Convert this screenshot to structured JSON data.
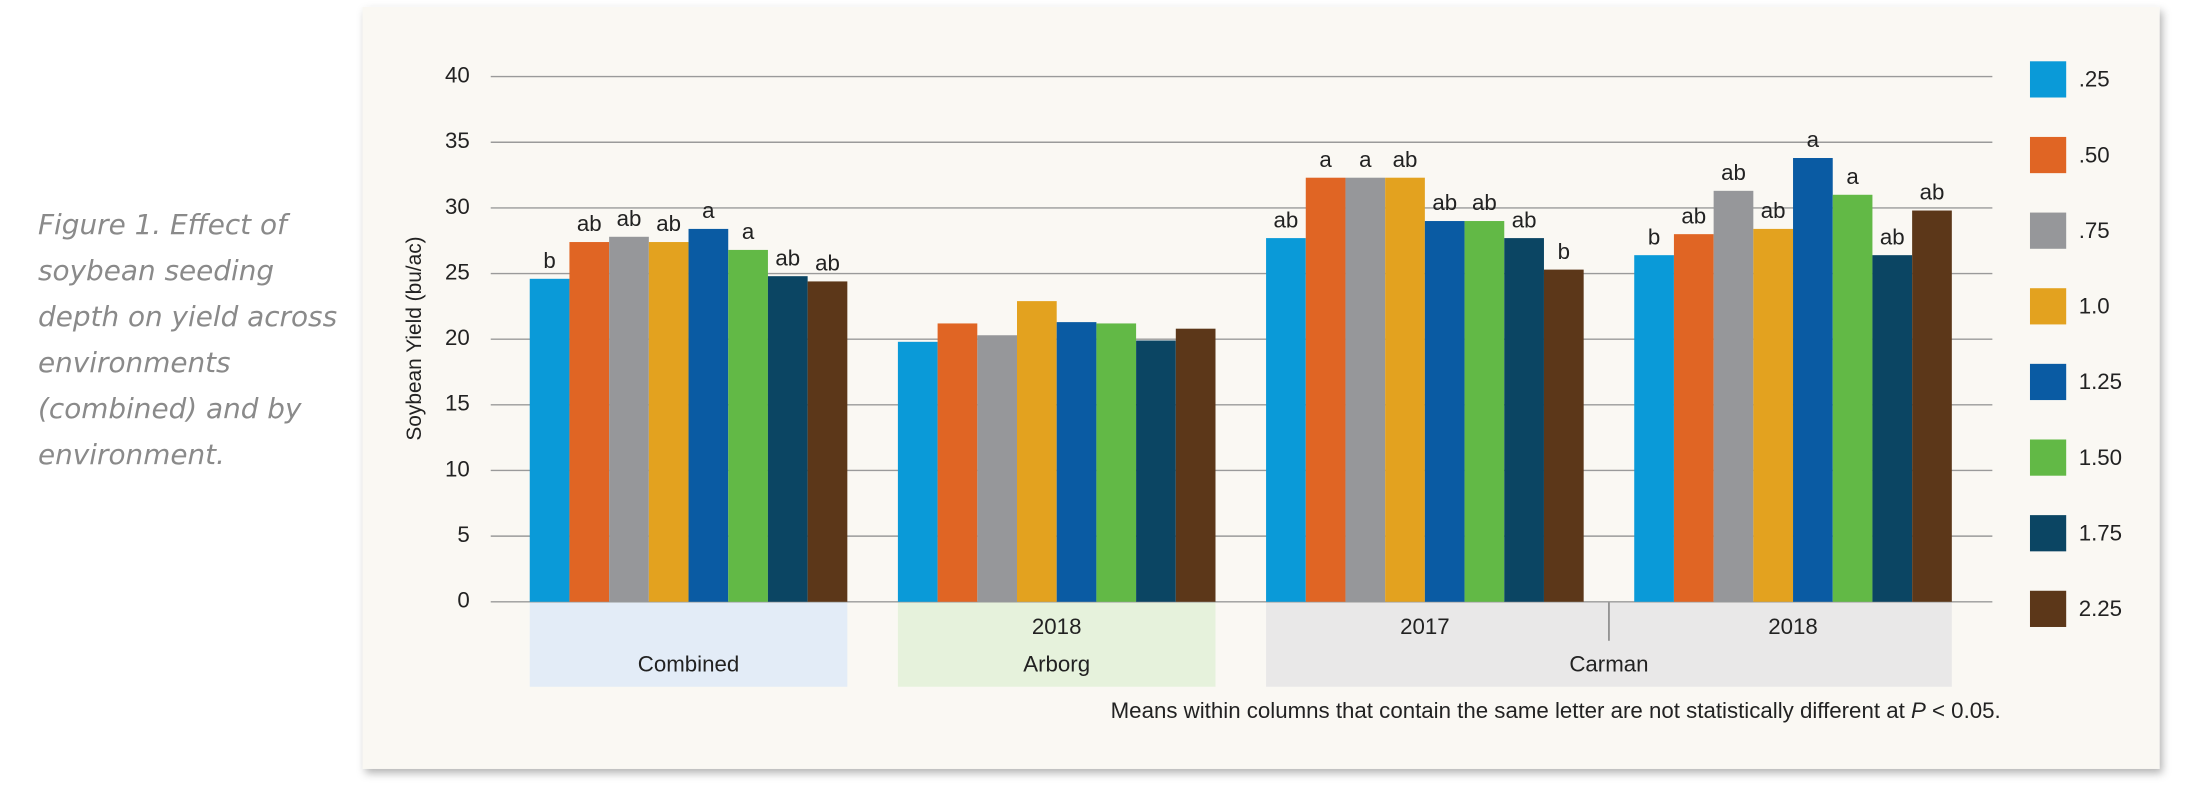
{
  "chart_data": {
    "type": "bar",
    "caption": "Figure 1. Effect of soybean seeding depth on yield across environments (combined) and by environment.",
    "y_label": "Soybean Yield (bu/ac)",
    "categories": [
      null,
      "2018",
      "2017",
      "2018"
    ],
    "category_groups": [
      {
        "label": "Combined",
        "count": 1,
        "color": "#e3ecf7"
      },
      {
        "label": "Arborg",
        "count": 1,
        "color": "#e6f2dc"
      },
      {
        "label": "Carman",
        "count": 2,
        "color": "#e9e8e8"
      }
    ],
    "series": [
      {
        "name": ".25",
        "color": "#0a9ad8",
        "values": [
          24.6,
          19.8,
          27.7,
          26.4
        ],
        "letters": [
          "b",
          null,
          "ab",
          "b"
        ]
      },
      {
        "name": ".50",
        "color": "#e06524",
        "values": [
          27.4,
          21.2,
          32.3,
          28.0
        ],
        "letters": [
          "ab",
          null,
          "a",
          "ab"
        ]
      },
      {
        "name": ".75",
        "color": "#96979a",
        "values": [
          27.8,
          20.3,
          32.3,
          31.3
        ],
        "letters": [
          "ab",
          null,
          "a",
          "ab"
        ]
      },
      {
        "name": "1.0",
        "color": "#e3a21f",
        "values": [
          27.4,
          22.9,
          32.3,
          28.4
        ],
        "letters": [
          "ab",
          null,
          "ab",
          "ab"
        ]
      },
      {
        "name": "1.25",
        "color": "#0a5ba3",
        "values": [
          28.4,
          21.3,
          29.0,
          33.8
        ],
        "letters": [
          "a",
          null,
          "ab",
          "a"
        ]
      },
      {
        "name": "1.50",
        "color": "#62b946",
        "values": [
          26.8,
          21.2,
          29.0,
          31.0
        ],
        "letters": [
          "a",
          null,
          "ab",
          "a"
        ]
      },
      {
        "name": "1.75",
        "color": "#0b4563",
        "values": [
          24.8,
          19.9,
          27.7,
          26.4
        ],
        "letters": [
          "ab",
          null,
          "ab",
          "ab"
        ]
      },
      {
        "name": "2.25",
        "color": "#5c3719",
        "values": [
          24.4,
          20.8,
          25.3,
          29.8
        ],
        "letters": [
          "ab",
          null,
          "b",
          "ab"
        ]
      }
    ],
    "ylim": [
      0,
      40
    ],
    "yticks": [
      0,
      5,
      10,
      15,
      20,
      25,
      30,
      35,
      40
    ],
    "grid": true,
    "note": [
      "Means within columns that contain the same letter are not statistically different at ",
      "P",
      " < 0.05."
    ]
  }
}
